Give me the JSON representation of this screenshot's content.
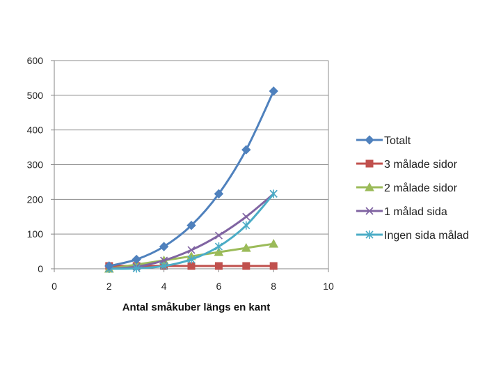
{
  "chart_data": {
    "type": "scatter",
    "title": "",
    "xlabel": "Antal småkuber längs en kant",
    "ylabel": "",
    "xlim": [
      0,
      10
    ],
    "ylim": [
      0,
      600
    ],
    "xticks": [
      0,
      2,
      4,
      6,
      8,
      10
    ],
    "yticks": [
      0,
      100,
      200,
      300,
      400,
      500,
      600
    ],
    "xtick_labels": [
      "0",
      "2",
      "4",
      "6",
      "8",
      "10"
    ],
    "ytick_labels": [
      "0",
      "100",
      "200",
      "300",
      "400",
      "500",
      "600"
    ],
    "grid": "horizontal",
    "legend_position": "right",
    "x": [
      2,
      3,
      4,
      5,
      6,
      7,
      8
    ],
    "series": [
      {
        "name": "Totalt",
        "color": "#4F81BD",
        "marker": "diamond",
        "values": [
          8,
          27,
          64,
          125,
          216,
          343,
          512
        ]
      },
      {
        "name": "3 målade sidor",
        "color": "#C0504D",
        "marker": "square",
        "values": [
          8,
          8,
          8,
          8,
          8,
          8,
          8
        ]
      },
      {
        "name": "2 målade sidor",
        "color": "#9BBB59",
        "marker": "triangle",
        "values": [
          0,
          12,
          24,
          36,
          48,
          60,
          72
        ]
      },
      {
        "name": "1 målad sida",
        "color": "#8064A2",
        "marker": "x",
        "values": [
          0,
          6,
          24,
          54,
          96,
          150,
          216
        ]
      },
      {
        "name": "Ingen sida målad",
        "color": "#4BACC6",
        "marker": "star",
        "values": [
          0,
          1,
          8,
          27,
          64,
          125,
          216
        ]
      }
    ]
  }
}
